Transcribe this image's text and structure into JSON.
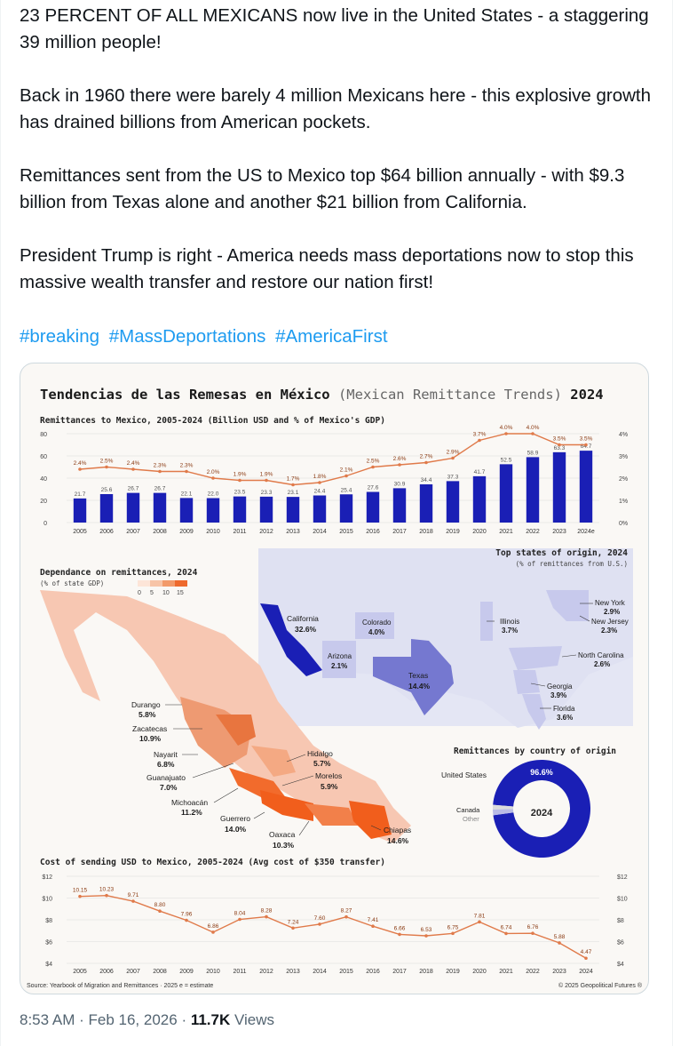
{
  "tweet": {
    "paragraphs": [
      "23 PERCENT OF ALL MEXICANS now live in the United States - a staggering 39 million people!",
      "Back in 1960 there were barely 4 million Mexicans here - this explosive growth has drained billions from American pockets.",
      "Remittances sent from the US to Mexico top $64 billion annually - with $9.3 billion from Texas alone and another $21 billion from California.",
      "President Trump is right - America needs mass deportations now to stop this massive wealth transfer and restore our nation first!"
    ],
    "hashtags": [
      "#breaking",
      "#MassDeportations",
      "#AmericaFirst"
    ],
    "time": "8:53 AM",
    "date": "Feb 16, 2026",
    "views_count": "11.7K",
    "views_label": "Views"
  },
  "infographic": {
    "title_es": "Tendencias de las Remesas en México",
    "title_en": "(Mexican Remittance Trends)",
    "title_year": "2024",
    "source": "Source: Yearbook of Migration and Remittances · 2025    e = estimate",
    "copyright": "© 2025 Geopolitical Futures ®",
    "map_title": "Dependance on remittances, 2024",
    "map_subtitle": "(% of state GDP)",
    "map_scale": [
      "0",
      "5",
      "10",
      "15"
    ],
    "top_states_title": "Top states of origin, 2024",
    "top_states_subtitle": "(% of remittances from U.S.)",
    "us_states": [
      {
        "name": "California",
        "value": "32.6%"
      },
      {
        "name": "Colorado",
        "value": "4.0%"
      },
      {
        "name": "Arizona",
        "value": "2.1%"
      },
      {
        "name": "Texas",
        "value": "14.4%"
      },
      {
        "name": "Illinois",
        "value": "3.7%"
      },
      {
        "name": "New York",
        "value": "2.9%"
      },
      {
        "name": "New Jersey",
        "value": "2.3%"
      },
      {
        "name": "North Carolina",
        "value": "2.6%"
      },
      {
        "name": "Georgia",
        "value": "3.9%"
      },
      {
        "name": "Florida",
        "value": "3.6%"
      }
    ],
    "mx_states": [
      {
        "name": "Durango",
        "value": "5.8%"
      },
      {
        "name": "Zacatecas",
        "value": "10.9%"
      },
      {
        "name": "Nayarit",
        "value": "6.8%"
      },
      {
        "name": "Guanajuato",
        "value": "7.0%"
      },
      {
        "name": "Michoacán",
        "value": "11.2%"
      },
      {
        "name": "Guerrero",
        "value": "14.0%"
      },
      {
        "name": "Oaxaca",
        "value": "10.3%"
      },
      {
        "name": "Chiapas",
        "value": "14.6%"
      },
      {
        "name": "Hidalgo",
        "value": "5.7%"
      },
      {
        "name": "Morelos",
        "value": "5.9%"
      }
    ],
    "donut": {
      "title": "Remittances by country of origin",
      "center": "2024",
      "labels": [
        "United States",
        "Canada",
        "Other"
      ],
      "us_label": "96.6%",
      "us_share": 96.6
    }
  },
  "chart_data": [
    {
      "type": "bar",
      "title": "Remittances to Mexico, 2005-2024 (Billion USD and % of Mexico's GDP)",
      "categories": [
        "2005",
        "2006",
        "2007",
        "2008",
        "2009",
        "2010",
        "2011",
        "2012",
        "2013",
        "2014",
        "2015",
        "2016",
        "2017",
        "2018",
        "2019",
        "2020",
        "2021",
        "2022",
        "2023",
        "2024e"
      ],
      "series": [
        {
          "values": [
            21.7,
            25.6,
            26.7,
            26.7,
            22.1,
            22.0,
            23.5,
            23.3,
            23.1,
            24.4,
            25.4,
            27.6,
            30.9,
            34.4,
            37.3,
            41.7,
            52.5,
            58.9,
            63.3,
            64.7
          ]
        },
        {
          "values": [
            2.4,
            2.5,
            2.4,
            2.3,
            2.3,
            2.0,
            1.9,
            1.9,
            1.7,
            1.8,
            2.1,
            2.5,
            2.6,
            2.7,
            2.9,
            3.7,
            4.0,
            4.0,
            3.5,
            3.5
          ]
        }
      ],
      "bar_labels": [
        "21.7",
        "25.6",
        "26.7",
        "26.7",
        "22.1",
        "22.0",
        "23.5",
        "23.3",
        "23.1",
        "24.4",
        "25.4",
        "27.6",
        "30.9",
        "34.4",
        "37.3",
        "41.7",
        "52.5",
        "58.9",
        "63.3",
        "64.7"
      ],
      "line_labels": [
        "2.4%",
        "2.5%",
        "2.4%",
        "2.3%",
        "2.3%",
        "2.0%",
        "1.9%",
        "1.9%",
        "1.7%",
        "1.8%",
        "2.1%",
        "2.5%",
        "2.6%",
        "2.7%",
        "2.9%",
        "3.7%",
        "4.0%",
        "4.0%",
        "3.5%",
        "3.5%"
      ],
      "y_ticks": [
        "0",
        "20",
        "40",
        "60",
        "80"
      ],
      "y2_ticks": [
        "0%",
        "1%",
        "2%",
        "3%",
        "4%"
      ],
      "ylim": [
        0,
        80
      ],
      "y2lim": [
        0,
        4
      ],
      "colors": {
        "bars": "#1a1fb5",
        "line": "#e07a4a"
      }
    },
    {
      "type": "line",
      "title": "Cost of sending USD to Mexico, 2005-2024 (Avg cost of $350 transfer)",
      "categories": [
        "2005",
        "2006",
        "2007",
        "2008",
        "2009",
        "2010",
        "2011",
        "2012",
        "2013",
        "2014",
        "2015",
        "2016",
        "2017",
        "2018",
        "2019",
        "2020",
        "2021",
        "2022",
        "2023",
        "2024"
      ],
      "values": [
        10.15,
        10.23,
        9.71,
        8.8,
        7.96,
        6.86,
        8.04,
        8.28,
        7.24,
        7.6,
        8.27,
        7.41,
        6.66,
        6.53,
        6.75,
        7.81,
        6.74,
        6.76,
        5.88,
        4.47
      ],
      "labels": [
        "10.15",
        "10.23",
        "9.71",
        "8.80",
        "7.96",
        "6.86",
        "8.04",
        "8.28",
        "7.24",
        "7.60",
        "8.27",
        "7.41",
        "6.66",
        "6.53",
        "6.75",
        "7.81",
        "6.74",
        "6.76",
        "5.88",
        "4.47"
      ],
      "y_ticks": [
        "$4",
        "$6",
        "$8",
        "$10",
        "$12"
      ],
      "ylim": [
        4,
        12
      ],
      "colors": {
        "line": "#e07a4a"
      }
    }
  ]
}
